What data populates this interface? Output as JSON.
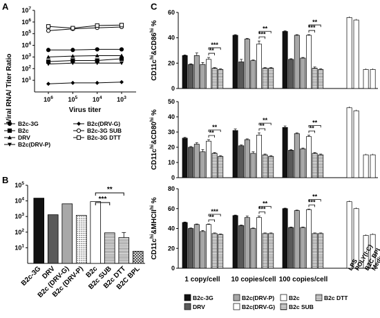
{
  "panels": {
    "A": "A",
    "B": "B",
    "C": "C"
  },
  "chart_data": [
    {
      "id": "A",
      "type": "line",
      "xlabel": "Virus titer",
      "ylabel": "Viral RNA/ Titer Ratio",
      "x": [
        1000000,
        100000,
        10000,
        1000
      ],
      "x_tick_labels": [
        "10^6",
        "10^5",
        "10^4",
        "10^3"
      ],
      "y_scale": "log",
      "ylim_exp": [
        0,
        7
      ],
      "y_tick_exponents": [
        1,
        2,
        3,
        4,
        5,
        6,
        7
      ],
      "legend_position": "bottom",
      "series": [
        {
          "name": "B2c-3G",
          "marker": "filled-circle",
          "values": [
            4000,
            4000,
            4500,
            4500
          ]
        },
        {
          "name": "B2c",
          "marker": "filled-square",
          "values": [
            400,
            500,
            500,
            700
          ]
        },
        {
          "name": "DRV",
          "marker": "filled-triangle-up",
          "values": [
            1000,
            1200,
            1300,
            1300
          ]
        },
        {
          "name": "B2c(DRV-P)",
          "marker": "filled-triangle-down",
          "values": [
            250,
            300,
            300,
            300
          ]
        },
        {
          "name": "B2c(DRV-G)",
          "marker": "filled-diamond",
          "values": [
            5,
            6,
            6,
            7
          ]
        },
        {
          "name": "B2c-3G SUB",
          "marker": "open-circle",
          "values": [
            180000,
            260000,
            320000,
            380000
          ]
        },
        {
          "name": "B2c-3G DTT",
          "marker": "open-square",
          "values": [
            420000,
            300000,
            500000,
            550000
          ]
        }
      ]
    },
    {
      "id": "B",
      "type": "bar",
      "y_scale": "log",
      "ylim_exp": [
        0,
        5
      ],
      "y_tick_exponents": [
        1,
        2,
        3,
        4,
        5
      ],
      "categories": [
        "B2c-3G",
        "DRV",
        "B2c (DRV-G)",
        "B2c (DRV-P)",
        "B2c",
        "B2c SUB",
        "B2c DTT",
        "B2C BPL"
      ],
      "values": [
        15000,
        1300,
        6500,
        1200,
        9000,
        90,
        45,
        6
      ],
      "errors": [
        0,
        0,
        0,
        0,
        0,
        0,
        50,
        0
      ],
      "bar_styles": [
        "black",
        "darkgray",
        "lightgray",
        "dots",
        "white",
        "hlines",
        "hlines",
        "hatch"
      ],
      "significance": [
        {
          "from": 4,
          "to": 5,
          "label": "***"
        },
        {
          "from": 4,
          "to": 6,
          "label": "**"
        }
      ]
    },
    {
      "id": "C",
      "type": "bar",
      "x_group_labels": [
        "1 copy/cell",
        "10 copies/cell",
        "100 copies/cell"
      ],
      "control_labels": [
        "LPS",
        "POLY(I:C)",
        "B2C BPL",
        "Medium"
      ],
      "legend_position": "bottom",
      "legend": [
        "B2c-3G",
        "B2c(DRV-P)",
        "B2c",
        "B2c DTT",
        "DRV",
        "B2c(DRV-G)",
        "B2c SUB"
      ],
      "subplots": [
        {
          "ylabel": "CD11c^hi&CD86^hi %",
          "ylim": [
            0,
            60
          ],
          "yticks": [
            0,
            20,
            40,
            60
          ],
          "groups": [
            [
              26,
              19,
              26,
              19,
              23,
              16,
              15
            ],
            [
              42,
              21,
              39,
              22,
              35,
              16,
              16
            ],
            [
              45,
              23,
              42,
              24,
              42,
              16,
              15
            ]
          ],
          "errors": [
            [
              0.5,
              0.5,
              2,
              1.5,
              1.5,
              0.5,
              0.5
            ],
            [
              0.5,
              2,
              0.5,
              0.5,
              2.5,
              0.5,
              0.5
            ],
            [
              0.5,
              0.5,
              0.5,
              0.5,
              0.5,
              1,
              0.5
            ]
          ],
          "significance": [
            "**",
            "***",
            "***",
            "**",
            "***",
            "**"
          ],
          "controls": [
            56,
            54,
            15,
            15
          ]
        },
        {
          "ylabel": "CD11c^hi&CD80^hi %",
          "ylim": [
            0,
            50
          ],
          "yticks": [
            0,
            10,
            20,
            30,
            40,
            50
          ],
          "groups": [
            [
              26,
              20,
              22,
              17,
              24,
              16,
              14
            ],
            [
              31,
              21,
              25,
              16,
              28,
              15,
              14
            ],
            [
              33,
              18,
              29,
              19,
              27,
              16,
              15
            ]
          ],
          "errors": [
            [
              0.5,
              0.5,
              1,
              1.5,
              1,
              0.5,
              0.5
            ],
            [
              1,
              0.5,
              0.5,
              1,
              1.5,
              0.5,
              0.5
            ],
            [
              1,
              0.5,
              0.5,
              0.5,
              1,
              0.5,
              0.5
            ]
          ],
          "significance": [
            "**",
            "**",
            "**",
            "**",
            "**",
            "**"
          ],
          "controls": [
            46,
            44,
            15,
            15
          ]
        },
        {
          "ylabel": "CD11c^hi&MHCII^hi %",
          "ylim": [
            0,
            80
          ],
          "yticks": [
            0,
            20,
            40,
            60,
            80
          ],
          "groups": [
            [
              46,
              40,
              44,
              37,
              44,
              35,
              34
            ],
            [
              53,
              43,
              51,
              40,
              51,
              35,
              35
            ],
            [
              60,
              41,
              58,
              41,
              59,
              35,
              35
            ]
          ],
          "errors": [
            [
              0.5,
              0.5,
              0.5,
              1,
              0.5,
              0.5,
              0.5
            ],
            [
              0.5,
              0.5,
              1.5,
              0.5,
              1.5,
              0.5,
              0.5
            ],
            [
              0.5,
              0.5,
              0.5,
              0.5,
              0.5,
              0.5,
              0.5
            ]
          ],
          "significance": [
            "**",
            "***",
            "***",
            "**",
            "***",
            "**"
          ],
          "controls": [
            67,
            60,
            33,
            34
          ]
        }
      ]
    }
  ]
}
